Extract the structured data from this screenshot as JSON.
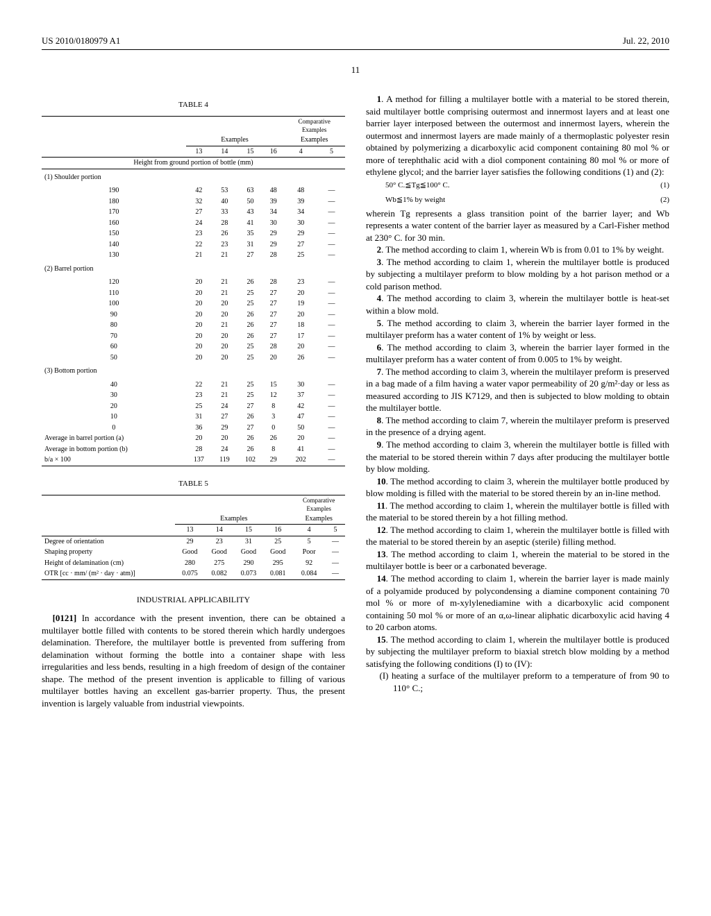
{
  "header": {
    "pubno": "US 2010/0180979 A1",
    "date": "Jul. 22, 2010"
  },
  "pagenum": "11",
  "table4": {
    "title": "TABLE 4",
    "group_examples": "Examples",
    "group_compar": "Comparative Examples",
    "col_labels": [
      "13",
      "14",
      "15",
      "16",
      "4",
      "5"
    ],
    "height_header": "Height from ground portion of bottle (mm)",
    "sections": [
      {
        "name": "(1) Shoulder portion",
        "rows": [
          {
            "h": "190",
            "v": [
              "42",
              "53",
              "63",
              "48",
              "48",
              "—"
            ]
          },
          {
            "h": "180",
            "v": [
              "32",
              "40",
              "50",
              "39",
              "39",
              "—"
            ]
          },
          {
            "h": "170",
            "v": [
              "27",
              "33",
              "43",
              "34",
              "34",
              "—"
            ]
          },
          {
            "h": "160",
            "v": [
              "24",
              "28",
              "41",
              "30",
              "30",
              "—"
            ]
          },
          {
            "h": "150",
            "v": [
              "23",
              "26",
              "35",
              "29",
              "29",
              "—"
            ]
          },
          {
            "h": "140",
            "v": [
              "22",
              "23",
              "31",
              "29",
              "27",
              "—"
            ]
          },
          {
            "h": "130",
            "v": [
              "21",
              "21",
              "27",
              "28",
              "25",
              "—"
            ]
          }
        ]
      },
      {
        "name": "(2) Barrel portion",
        "rows": [
          {
            "h": "120",
            "v": [
              "20",
              "21",
              "26",
              "28",
              "23",
              "—"
            ]
          },
          {
            "h": "110",
            "v": [
              "20",
              "21",
              "25",
              "27",
              "20",
              "—"
            ]
          },
          {
            "h": "100",
            "v": [
              "20",
              "20",
              "25",
              "27",
              "19",
              "—"
            ]
          },
          {
            "h": "90",
            "v": [
              "20",
              "20",
              "26",
              "27",
              "20",
              "—"
            ]
          },
          {
            "h": "80",
            "v": [
              "20",
              "21",
              "26",
              "27",
              "18",
              "—"
            ]
          },
          {
            "h": "70",
            "v": [
              "20",
              "20",
              "26",
              "27",
              "17",
              "—"
            ]
          },
          {
            "h": "60",
            "v": [
              "20",
              "20",
              "25",
              "28",
              "20",
              "—"
            ]
          },
          {
            "h": "50",
            "v": [
              "20",
              "20",
              "25",
              "20",
              "26",
              "—"
            ]
          }
        ]
      },
      {
        "name": "(3) Bottom portion",
        "rows": [
          {
            "h": "40",
            "v": [
              "22",
              "21",
              "25",
              "15",
              "30",
              "—"
            ]
          },
          {
            "h": "30",
            "v": [
              "23",
              "21",
              "25",
              "12",
              "37",
              "—"
            ]
          },
          {
            "h": "20",
            "v": [
              "25",
              "24",
              "27",
              "8",
              "42",
              "—"
            ]
          },
          {
            "h": "10",
            "v": [
              "31",
              "27",
              "26",
              "3",
              "47",
              "—"
            ]
          },
          {
            "h": "0",
            "v": [
              "36",
              "29",
              "27",
              "0",
              "50",
              "—"
            ]
          }
        ]
      }
    ],
    "footer_rows": [
      {
        "h": "Average in barrel portion (a)",
        "v": [
          "20",
          "20",
          "26",
          "26",
          "20",
          "—"
        ]
      },
      {
        "h": "Average in bottom portion (b)",
        "v": [
          "28",
          "24",
          "26",
          "8",
          "41",
          "—"
        ]
      },
      {
        "h": "b/a × 100",
        "v": [
          "137",
          "119",
          "102",
          "29",
          "202",
          "—"
        ]
      }
    ]
  },
  "table5": {
    "title": "TABLE 5",
    "group_examples": "Examples",
    "group_compar": "Comparative Examples",
    "col_labels": [
      "13",
      "14",
      "15",
      "16",
      "4",
      "5"
    ],
    "rows": [
      {
        "h": "Degree of orientation",
        "v": [
          "29",
          "23",
          "31",
          "25",
          "5",
          "—"
        ]
      },
      {
        "h": "Shaping property",
        "v": [
          "Good",
          "Good",
          "Good",
          "Good",
          "Poor",
          "—"
        ]
      },
      {
        "h": "Height of delamination (cm)",
        "v": [
          "280",
          "275",
          "290",
          "295",
          "92",
          "—"
        ]
      },
      {
        "h": "OTR [cc · mm/ (m² · day · atm)]",
        "v": [
          "0.075",
          "0.082",
          "0.073",
          "0.081",
          "0.084",
          "—"
        ]
      }
    ]
  },
  "industrial_heading": "INDUSTRIAL APPLICABILITY",
  "para0121_label": "[0121]",
  "para0121_text": "In accordance with the present invention, there can be obtained a multilayer bottle filled with contents to be stored therein which hardly undergoes delamination. Therefore, the multilayer bottle is prevented from suffering from delamination without forming the bottle into a container shape with less irregularities and less bends, resulting in a high freedom of design of the container shape. The method of the present invention is applicable to filling of various multilayer bottles having an excellent gas-barrier property. Thus, the present invention is largely valuable from industrial viewpoints.",
  "claims": {
    "c1_pre": "1. A method for filling a multilayer bottle with a material to be stored therein, said multilayer bottle comprising outermost and innermost layers and at least one barrier layer interposed between the outermost and innermost layers, wherein the outermost and innermost layers are made mainly of a thermoplastic polyester resin obtained by polymerizing a dicarboxylic acid component containing 80 mol % or more of terephthalic acid with a diol component containing 80 mol % or more of ethylene glycol; and the barrier layer satisfies the following conditions (1) and (2):",
    "eq1": "50° C.≦Tg≦100° C.",
    "eq1_no": "(1)",
    "eq2": "Wb≦1% by weight",
    "eq2_no": "(2)",
    "c1_post": "wherein Tg represents a glass transition point of the barrier layer; and Wb represents a water content of the barrier layer as measured by a Carl-Fisher method at 230° C. for 30 min.",
    "c2": "2. The method according to claim 1, wherein Wb is from 0.01 to 1% by weight.",
    "c3": "3. The method according to claim 1, wherein the multilayer bottle is produced by subjecting a multilayer preform to blow molding by a hot parison method or a cold parison method.",
    "c4": "4. The method according to claim 3, wherein the multilayer bottle is heat-set within a blow mold.",
    "c5": "5. The method according to claim 3, wherein the barrier layer formed in the multilayer preform has a water content of 1% by weight or less.",
    "c6": "6. The method according to claim 3, wherein the barrier layer formed in the multilayer preform has a water content of from 0.005 to 1% by weight.",
    "c7": "7. The method according to claim 3, wherein the multilayer preform is preserved in a bag made of a film having a water vapor permeability of 20 g/m²·day or less as measured according to JIS K7129, and then is subjected to blow molding to obtain the multilayer bottle.",
    "c8": "8. The method according to claim 7, wherein the multilayer preform is preserved in the presence of a drying agent.",
    "c9": "9. The method according to claim 3, wherein the multilayer bottle is filled with the material to be stored therein within 7 days after producing the multilayer bottle by blow molding.",
    "c10": "10. The method according to claim 3, wherein the multilayer bottle produced by blow molding is filled with the material to be stored therein by an in-line method.",
    "c11": "11. The method according to claim 1, wherein the multilayer bottle is filled with the material to be stored therein by a hot filling method.",
    "c12": "12. The method according to claim 1, wherein the multilayer bottle is filled with the material to be stored therein by an aseptic (sterile) filling method.",
    "c13": "13. The method according to claim 1, wherein the material to be stored in the multilayer bottle is beer or a carbonated beverage.",
    "c14": "14. The method according to claim 1, wherein the barrier layer is made mainly of a polyamide produced by polycondensing a diamine component containing 70 mol % or more of m-xylylenediamine with a dicarboxylic acid component containing 50 mol % or more of an α,ω-linear aliphatic dicarboxylic acid having 4 to 20 carbon atoms.",
    "c15_pre": "15. The method according to claim 1, wherein the multilayer bottle is produced by subjecting the multilayer preform to biaxial stretch blow molding by a method satisfying the following conditions (I) to (IV):",
    "c15_I": "(I) heating a surface of the multilayer preform to a temperature of from 90 to 110° C.;"
  }
}
